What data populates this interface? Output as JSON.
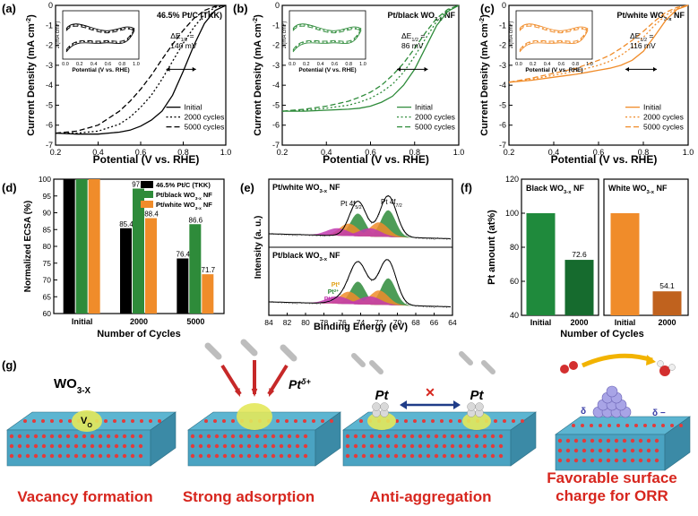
{
  "panels": {
    "a": {
      "letter": "(a)",
      "tag": "46.5% Pt/C (TKK)",
      "color": "#000000",
      "de_label": "ΔE",
      "de_sub": "1/2",
      "de_eq": " =",
      "de_value": "140 mV"
    },
    "b": {
      "letter": "(b)",
      "tag": "Pt/black WO",
      "tag_sub": "3-x",
      "tag_end": " NF",
      "color": "#2e8b3a",
      "de_label": "ΔE",
      "de_sub": "1/2",
      "de_eq": " =",
      "de_value": "86 mV"
    },
    "c": {
      "letter": "(c)",
      "tag": "Pt/white WO",
      "tag_sub": "3-x",
      "tag_end": " NF",
      "color": "#f08c2a",
      "de_label": "ΔE",
      "de_sub": "1/2",
      "de_eq": " =",
      "de_value": "116 mV"
    },
    "d": {
      "letter": "(d)"
    },
    "e": {
      "letter": "(e)"
    },
    "f": {
      "letter": "(f)"
    },
    "g": {
      "letter": "(g)"
    }
  },
  "lsv_axes": {
    "ylabel": "Current Density (mA cm",
    "ylabel_sup": "-2",
    "ylabel_end": ")",
    "xlabel": "Potential (V vs. RHE)",
    "x_ticks": [
      "0.2",
      "0.4",
      "0.6",
      "0.8",
      "1.0"
    ],
    "y_ticks": [
      "0",
      "-1",
      "-2",
      "-3",
      "-4",
      "-5",
      "-6",
      "-7"
    ],
    "legend": [
      "Initial",
      "2000 cycles",
      "5000 cycles"
    ]
  },
  "inset": {
    "ylabel": "J (mA cm",
    "ylabel_sup": "-2",
    "ylabel_end": ")",
    "xlabel": "Potential (V vs. RHE)",
    "x_ticks": [
      "0.0",
      "0.2",
      "0.4",
      "0.6",
      "0.8",
      "1.0"
    ]
  },
  "chart_data": [
    {
      "type": "line",
      "panel": "a",
      "title": "46.5% Pt/C (TKK)",
      "xlabel": "Potential (V vs. RHE)",
      "ylabel": "Current Density (mA cm-2)",
      "xlim": [
        0.2,
        1.0
      ],
      "ylim": [
        -7,
        0
      ],
      "series": [
        {
          "name": "Initial",
          "x": [
            0.2,
            0.3,
            0.4,
            0.5,
            0.55,
            0.6,
            0.65,
            0.7,
            0.75,
            0.8,
            0.85,
            0.9,
            0.95,
            1.0
          ],
          "y": [
            -6.4,
            -6.45,
            -6.45,
            -6.35,
            -6.25,
            -6.05,
            -5.75,
            -5.3,
            -4.5,
            -3.3,
            -2.0,
            -0.9,
            -0.25,
            0.0
          ]
        },
        {
          "name": "2000 cycles",
          "x": [
            0.2,
            0.3,
            0.4,
            0.5,
            0.55,
            0.6,
            0.65,
            0.7,
            0.75,
            0.8,
            0.85,
            0.9,
            0.95,
            1.0
          ],
          "y": [
            -6.4,
            -6.4,
            -6.3,
            -5.95,
            -5.6,
            -5.1,
            -4.5,
            -3.7,
            -2.8,
            -1.9,
            -1.1,
            -0.45,
            -0.1,
            0.0
          ]
        },
        {
          "name": "5000 cycles",
          "x": [
            0.2,
            0.3,
            0.4,
            0.5,
            0.55,
            0.6,
            0.65,
            0.7,
            0.75,
            0.8,
            0.85,
            0.9,
            0.95,
            1.0
          ],
          "y": [
            -6.4,
            -6.3,
            -6.0,
            -5.3,
            -4.8,
            -4.2,
            -3.5,
            -2.7,
            -1.95,
            -1.25,
            -0.65,
            -0.25,
            -0.05,
            0.0
          ]
        }
      ]
    },
    {
      "type": "line",
      "panel": "b",
      "title": "Pt/black WO3-x NF",
      "xlabel": "Potential (V vs. RHE)",
      "ylabel": "Current Density (mA cm-2)",
      "xlim": [
        0.2,
        1.0
      ],
      "ylim": [
        -7,
        0
      ],
      "series": [
        {
          "name": "Initial",
          "x": [
            0.2,
            0.3,
            0.4,
            0.5,
            0.55,
            0.6,
            0.65,
            0.7,
            0.75,
            0.8,
            0.85,
            0.9,
            0.95,
            1.0
          ],
          "y": [
            -5.3,
            -5.3,
            -5.25,
            -5.2,
            -5.15,
            -5.05,
            -4.85,
            -4.55,
            -4.0,
            -3.2,
            -2.1,
            -1.0,
            -0.3,
            0.0
          ]
        },
        {
          "name": "2000 cycles",
          "x": [
            0.2,
            0.3,
            0.4,
            0.5,
            0.55,
            0.6,
            0.65,
            0.7,
            0.75,
            0.8,
            0.85,
            0.9,
            0.95,
            1.0
          ],
          "y": [
            -5.3,
            -5.25,
            -5.15,
            -5.0,
            -4.85,
            -4.65,
            -4.35,
            -3.95,
            -3.35,
            -2.55,
            -1.65,
            -0.8,
            -0.25,
            0.0
          ]
        },
        {
          "name": "5000 cycles",
          "x": [
            0.2,
            0.3,
            0.4,
            0.5,
            0.55,
            0.6,
            0.65,
            0.7,
            0.75,
            0.8,
            0.85,
            0.9,
            0.95,
            1.0
          ],
          "y": [
            -5.3,
            -5.2,
            -5.05,
            -4.8,
            -4.6,
            -4.35,
            -4.0,
            -3.5,
            -2.9,
            -2.15,
            -1.35,
            -0.65,
            -0.2,
            0.0
          ]
        }
      ]
    },
    {
      "type": "line",
      "panel": "c",
      "title": "Pt/white WO3-x NF",
      "xlabel": "Potential (V vs. RHE)",
      "ylabel": "Current Density (mA cm-2)",
      "xlim": [
        0.2,
        1.0
      ],
      "ylim": [
        -7,
        0
      ],
      "series": [
        {
          "name": "Initial",
          "x": [
            0.2,
            0.3,
            0.4,
            0.5,
            0.55,
            0.6,
            0.65,
            0.7,
            0.75,
            0.8,
            0.85,
            0.9,
            0.95,
            1.0
          ],
          "y": [
            -3.85,
            -3.75,
            -3.6,
            -3.45,
            -3.35,
            -3.25,
            -3.15,
            -3.0,
            -2.75,
            -2.3,
            -1.55,
            -0.75,
            -0.2,
            0.0
          ]
        },
        {
          "name": "2000 cycles",
          "x": [
            0.2,
            0.3,
            0.4,
            0.5,
            0.55,
            0.6,
            0.65,
            0.7,
            0.75,
            0.8,
            0.85,
            0.9,
            0.95,
            1.0
          ],
          "y": [
            -3.85,
            -3.7,
            -3.5,
            -3.3,
            -3.15,
            -3.0,
            -2.8,
            -2.5,
            -2.1,
            -1.6,
            -1.0,
            -0.5,
            -0.15,
            0.0
          ]
        },
        {
          "name": "5000 cycles",
          "x": [
            0.2,
            0.3,
            0.4,
            0.5,
            0.55,
            0.6,
            0.65,
            0.7,
            0.75,
            0.8,
            0.85,
            0.9,
            0.95,
            1.0
          ],
          "y": [
            -3.85,
            -3.65,
            -3.4,
            -3.15,
            -2.95,
            -2.75,
            -2.5,
            -2.15,
            -1.75,
            -1.3,
            -0.8,
            -0.35,
            -0.1,
            0.0
          ]
        }
      ]
    },
    {
      "type": "bar",
      "panel": "d",
      "xlabel": "Number of Cycles",
      "ylabel": "Normalized ECSA (%)",
      "ylim": [
        60,
        100
      ],
      "y_ticks": [
        "60",
        "65",
        "70",
        "75",
        "80",
        "85",
        "90",
        "95",
        "100"
      ],
      "categories": [
        "Initial",
        "2000",
        "5000"
      ],
      "series": [
        {
          "name": "46.5% Pt/C (TKK)",
          "color": "#000000",
          "values": [
            100,
            85.4,
            76.4
          ],
          "labels": [
            "",
            "85.4",
            "76.4"
          ]
        },
        {
          "name": "Pt/black WO3-x NF",
          "color": "#2e8b3a",
          "values": [
            100,
            97.2,
            86.6
          ],
          "labels": [
            "",
            "97.2",
            "86.6"
          ]
        },
        {
          "name": "Pt/white WO3-x NF",
          "color": "#f08c2a",
          "values": [
            100,
            88.4,
            71.7
          ],
          "labels": [
            "",
            "88.4",
            "71.7"
          ]
        }
      ],
      "legend": [
        {
          "text": "46.5% Pt/C (TKK)",
          "sub": "",
          "end": ""
        },
        {
          "text": "Pt/black WO",
          "sub": "3-x",
          "end": "  NF"
        },
        {
          "text": "Pt/white WO",
          "sub": "3-x",
          "end": "  NF"
        }
      ]
    },
    {
      "type": "line",
      "panel": "e",
      "xlabel": "Binding Energy (eV)",
      "ylabel": "Intensity (a. u.)",
      "xlim": [
        84,
        64
      ],
      "x_ticks": [
        "84",
        "82",
        "80",
        "78",
        "76",
        "74",
        "72",
        "70",
        "68",
        "66",
        "64"
      ],
      "subplots": [
        {
          "title": "Pt/white WO",
          "title_sub": "3-x",
          "title_end": " NF",
          "peaks": [
            "Pt 4f",
            "Pt 4f"
          ],
          "peak_subs": [
            "5/2",
            "7/2"
          ],
          "components": []
        },
        {
          "title": "Pt/black WO",
          "title_sub": "3-x",
          "title_end": " NF",
          "peaks": [],
          "peak_subs": [],
          "components": [
            "Pt",
            "Pt",
            "Pt"
          ],
          "component_sups": [
            "0",
            "2+",
            "4+"
          ]
        }
      ]
    },
    {
      "type": "bar",
      "panel": "f",
      "xlabel": "Number of Cycles",
      "ylabel": "Pt amount (at%)",
      "ylim": [
        40,
        120
      ],
      "y_ticks": [
        "40",
        "60",
        "80",
        "100",
        "120"
      ],
      "groups": [
        {
          "title": "Black WO",
          "title_sub": "3-x",
          "title_end": "  NF",
          "categories": [
            "Initial",
            "2000"
          ],
          "values": [
            100,
            72.6
          ],
          "labels": [
            "",
            "72.6"
          ],
          "colors": [
            "#1f8a3c",
            "#166b2e"
          ]
        },
        {
          "title": "White WO",
          "title_sub": "3-x",
          "title_end": "  NF",
          "categories": [
            "Initial",
            "2000"
          ],
          "values": [
            100,
            54.1
          ],
          "labels": [
            "",
            "54.1"
          ],
          "colors": [
            "#f08c2a",
            "#c0621e"
          ]
        }
      ]
    }
  ],
  "schematic": {
    "wo3x": "WO",
    "wo3x_sub": "3-X",
    "vo": "V",
    "vo_sub": "O",
    "pt_delta": "Pt",
    "pt_delta_sup": "δ+",
    "pt_left": "Pt",
    "pt_right": "Pt",
    "delta": "δ",
    "delta_minus": "δ −",
    "cross": "✕",
    "labels": [
      "Vacancy formation",
      "Strong adsorption",
      "Anti-aggregation",
      "Favorable surface charge for ORR"
    ]
  }
}
